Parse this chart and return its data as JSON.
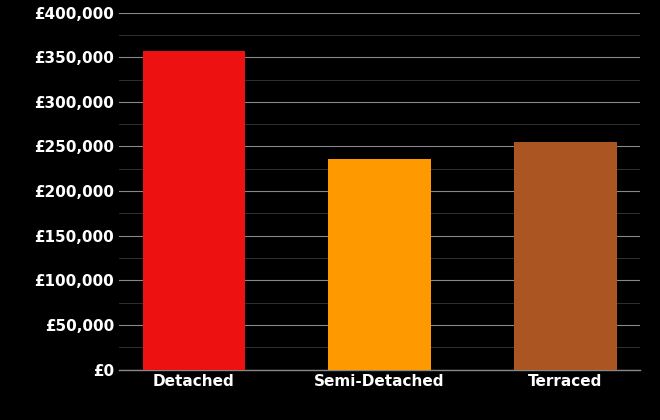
{
  "categories": [
    "Detached",
    "Semi-Detached",
    "Terraced"
  ],
  "values": [
    357000,
    236000,
    255000
  ],
  "bar_colors": [
    "#ee1111",
    "#ff9900",
    "#aa5522"
  ],
  "background_color": "#000000",
  "text_color": "#ffffff",
  "grid_color": "#888888",
  "minor_grid_color": "#444444",
  "ylim": [
    0,
    400000
  ],
  "ytick_step": 50000,
  "tick_fontsize": 11,
  "bar_width": 0.55
}
